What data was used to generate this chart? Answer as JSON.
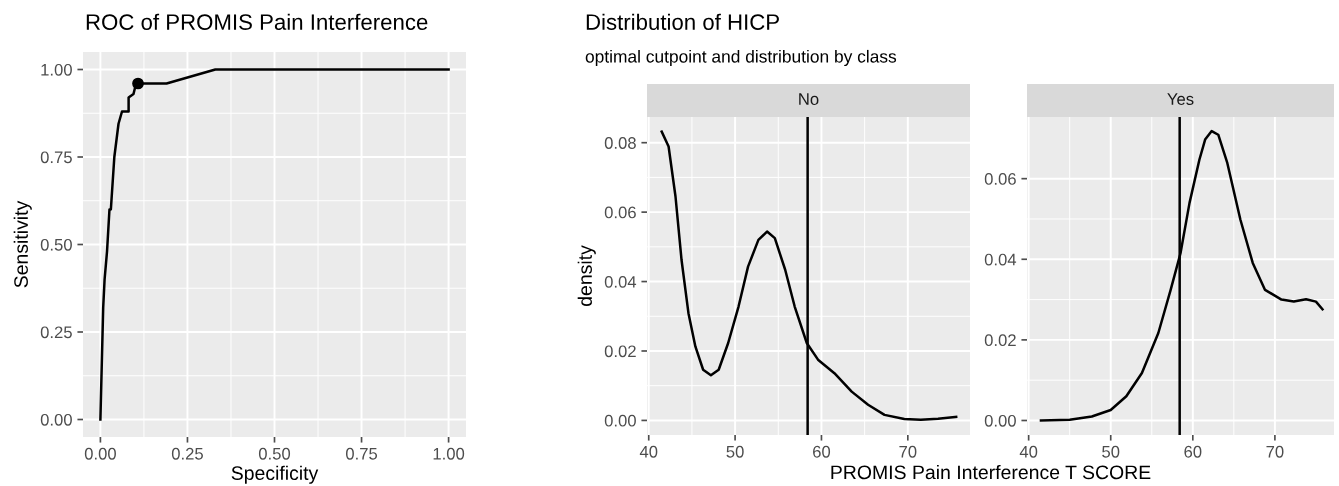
{
  "chart_data": [
    {
      "type": "line",
      "title": "ROC of PROMIS Pain Interference",
      "xlabel": "Specificity",
      "ylabel": "Sensitivity",
      "xlim": [
        -0.05,
        1.05
      ],
      "ylim": [
        -0.05,
        1.05
      ],
      "xticks": [
        {
          "value": 0,
          "label": "0.00"
        },
        {
          "value": 0.25,
          "label": "0.25"
        },
        {
          "value": 0.5,
          "label": "0.50"
        },
        {
          "value": 0.75,
          "label": "0.75"
        },
        {
          "value": 1,
          "label": "1.00"
        }
      ],
      "yticks": [
        {
          "value": 0,
          "label": "0.00"
        },
        {
          "value": 0.25,
          "label": "0.25"
        },
        {
          "value": 0.5,
          "label": "0.50"
        },
        {
          "value": 0.75,
          "label": "0.75"
        },
        {
          "value": 1,
          "label": "1.00"
        }
      ],
      "grid": true,
      "series": [
        {
          "color": "#000000",
          "x": [
            0,
            0.008,
            0.012,
            0.019,
            0.026,
            0.03,
            0.04,
            0.052,
            0.062,
            0.081,
            0.081,
            0.095,
            0.1,
            0.108,
            0.19,
            0.33,
            1.0
          ],
          "values": [
            0,
            0.32,
            0.4,
            0.48,
            0.6,
            0.6,
            0.75,
            0.845,
            0.88,
            0.88,
            0.92,
            0.93,
            0.95,
            0.96,
            0.96,
            1.0,
            1.0
          ]
        },
        {
          "type": "scatter",
          "marker": "circle",
          "color": "#000000",
          "x": [
            0.108
          ],
          "values": [
            0.96
          ]
        }
      ]
    },
    {
      "type": "line",
      "title": "Distribution of HICP",
      "subtitle": "optimal cutpoint and distribution by class",
      "xlabel": "PROMIS Pain Interference T SCORE",
      "ylabel": "density",
      "annotations": [
        "No"
      ],
      "xlim": [
        39.8,
        77.2
      ],
      "ylim": [
        -0.0042,
        0.0874
      ],
      "xticks": [
        40,
        50,
        60,
        70
      ],
      "yticks": [
        {
          "value": 0,
          "label": "0.00"
        },
        {
          "value": 0.02,
          "label": "0.02"
        },
        {
          "value": 0.04,
          "label": "0.04"
        },
        {
          "value": 0.06,
          "label": "0.06"
        },
        {
          "value": 0.08,
          "label": "0.08"
        }
      ],
      "grid": true,
      "ref_lines": [
        {
          "axis": "x",
          "value": 58.4,
          "color": "#000000"
        }
      ],
      "series": [
        {
          "color": "#000000",
          "x": [
            41.5,
            42.3,
            43.1,
            43.8,
            44.6,
            45.4,
            46.3,
            47.2,
            48.1,
            49.2,
            50.4,
            51.5,
            52.7,
            53.7,
            54.6,
            55.8,
            56.9,
            58.3,
            59.6,
            61.5,
            63.5,
            65.4,
            67.3,
            69.6,
            71.5,
            73.5,
            75.6
          ],
          "values": [
            0.0832,
            0.0789,
            0.0645,
            0.0462,
            0.0309,
            0.0213,
            0.0146,
            0.013,
            0.0146,
            0.0223,
            0.0328,
            0.0443,
            0.052,
            0.0544,
            0.0525,
            0.0434,
            0.0328,
            0.0223,
            0.0175,
            0.0136,
            0.0083,
            0.0045,
            0.0016,
            0.0004,
            0.0002,
            0.0005,
            0.001
          ]
        }
      ]
    },
    {
      "type": "line",
      "annotations": [
        "Yes"
      ],
      "xlim": [
        39.8,
        77.2
      ],
      "ylim": [
        -0.0036,
        0.0753
      ],
      "xticks": [
        40,
        50,
        60,
        70
      ],
      "yticks": [
        {
          "value": 0,
          "label": "0.00"
        },
        {
          "value": 0.02,
          "label": "0.02"
        },
        {
          "value": 0.04,
          "label": "0.04"
        },
        {
          "value": 0.06,
          "label": "0.06"
        }
      ],
      "grid": true,
      "ref_lines": [
        {
          "axis": "x",
          "value": 58.4,
          "color": "#000000"
        }
      ],
      "series": [
        {
          "color": "#000000",
          "x": [
            41.5,
            45,
            47.7,
            50,
            51.9,
            53.8,
            55.8,
            57.3,
            58.5,
            59.6,
            60.8,
            61.5,
            62.3,
            63.1,
            64.2,
            65.8,
            67.3,
            68.8,
            70.8,
            72.3,
            73.8,
            75,
            75.8
          ],
          "values": [
            0,
            0.0002,
            0.001,
            0.0026,
            0.006,
            0.0118,
            0.0217,
            0.0324,
            0.0415,
            0.054,
            0.0647,
            0.0697,
            0.0718,
            0.0709,
            0.0639,
            0.0498,
            0.0391,
            0.0324,
            0.03,
            0.0295,
            0.0301,
            0.0295,
            0.0276
          ]
        }
      ]
    }
  ]
}
